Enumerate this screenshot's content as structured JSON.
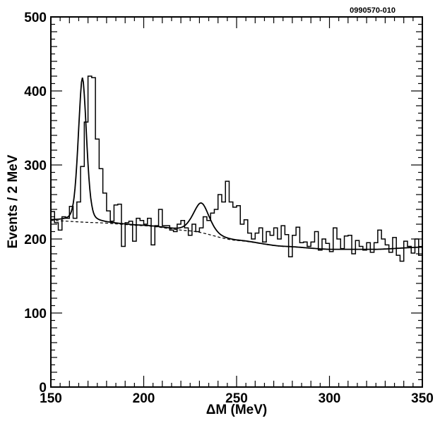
{
  "figure_id": "0990570-010",
  "chart_data": {
    "type": "histogram",
    "title": "",
    "xlabel": "ΔM (MeV)",
    "ylabel": "Events / 2 MeV",
    "xlim": [
      150,
      350
    ],
    "ylim": [
      0,
      500
    ],
    "xticks": [
      150,
      200,
      250,
      300,
      350
    ],
    "yticks": [
      0,
      100,
      200,
      300,
      400,
      500
    ],
    "bin_width": 2,
    "bin_start": 150,
    "histogram": {
      "name": "",
      "values": [
        237,
        222,
        212,
        230,
        228,
        244,
        228,
        250,
        298,
        358,
        420,
        418,
        335,
        295,
        262,
        238,
        224,
        246,
        247,
        190,
        222,
        224,
        197,
        228,
        225,
        220,
        228,
        192,
        218,
        240,
        218,
        218,
        212,
        210,
        220,
        225,
        215,
        205,
        220,
        210,
        215,
        230,
        225,
        235,
        240,
        260,
        250,
        278,
        250,
        243,
        245,
        220,
        226,
        208,
        200,
        208,
        215,
        196,
        210,
        205,
        215,
        200,
        218,
        206,
        176,
        205,
        216,
        195,
        196,
        190,
        196,
        210,
        185,
        200,
        194,
        183,
        215,
        200,
        187,
        204,
        205,
        180,
        198,
        190,
        185,
        195,
        182,
        195,
        212,
        200,
        192,
        182,
        202,
        178,
        170,
        197,
        190,
        181,
        200,
        178,
        198,
        183,
        191,
        189,
        189,
        185,
        205,
        188,
        200,
        194,
        197,
        185,
        186,
        183,
        187,
        200,
        194,
        185,
        190,
        187,
        195,
        187,
        206,
        198,
        172,
        200,
        190,
        202,
        192,
        186,
        190,
        190,
        188,
        183,
        190,
        191,
        180,
        176,
        189,
        195,
        187,
        190,
        181,
        187,
        210,
        186,
        190,
        199,
        180,
        172,
        198,
        200,
        187,
        188,
        190,
        205,
        201,
        187,
        196,
        185,
        180,
        194,
        203,
        192,
        186,
        190,
        200,
        195,
        175,
        180,
        183,
        187,
        205,
        195,
        191,
        187,
        190,
        197,
        181,
        188,
        175,
        185,
        201,
        186,
        172,
        188,
        193,
        210,
        180,
        185,
        195,
        188,
        180,
        186,
        176,
        193,
        198,
        186,
        192,
        190
      ]
    },
    "fit": {
      "name": "",
      "style": "solid",
      "peaks": [
        {
          "mean": 167,
          "sigma": 2.3,
          "amplitude": 195
        },
        {
          "mean": 231,
          "sigma": 4.5,
          "amplitude": 40
        }
      ]
    },
    "background": {
      "name": "",
      "style": "dashed",
      "x": [
        150,
        175,
        200,
        225,
        250,
        275,
        300,
        325,
        350
      ],
      "y": [
        225,
        222,
        218,
        211,
        198,
        190,
        186,
        186,
        189
      ]
    }
  }
}
